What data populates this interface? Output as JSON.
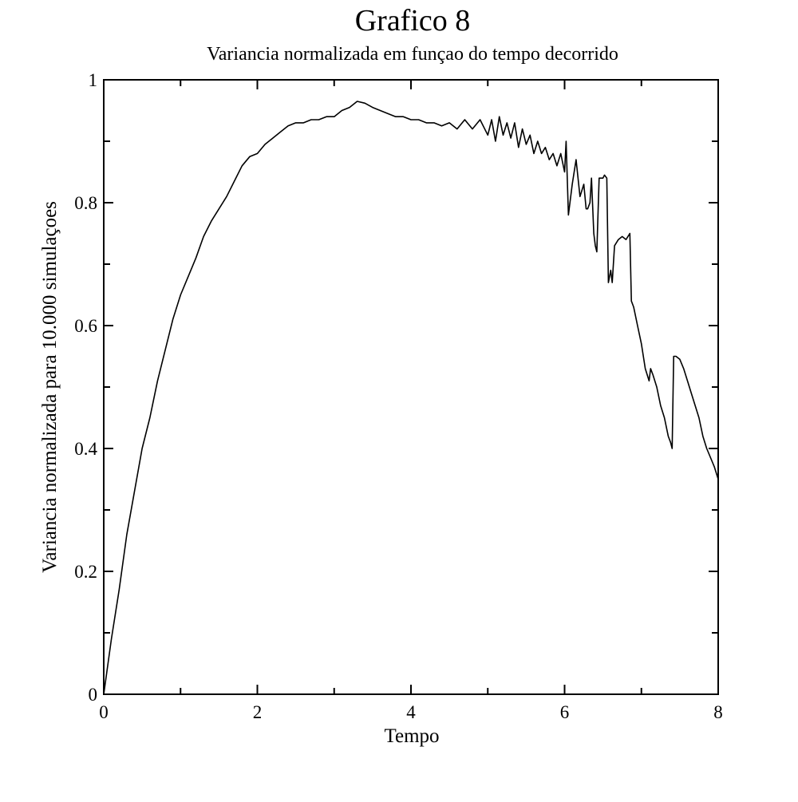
{
  "chart_data": {
    "type": "line",
    "title": "Grafico 8",
    "subtitle": "Variancia normalizada em funçao do tempo decorrido",
    "xlabel": "Tempo",
    "ylabel": "Variancia normalizada para 10.000 simulaçoes",
    "xlim": [
      0,
      8
    ],
    "ylim": [
      0,
      1
    ],
    "xticks": [
      0,
      2,
      4,
      6,
      8
    ],
    "xtick_labels": [
      "0",
      "2",
      "4",
      "6",
      "8"
    ],
    "yticks": [
      0,
      0.2,
      0.4,
      0.6,
      0.8,
      1
    ],
    "ytick_labels": [
      "0",
      "0.2",
      "0.4",
      "0.6",
      "0.8",
      "1"
    ],
    "x_minor_step": 1,
    "y_minor_step": 0.1,
    "grid": false,
    "legend": "none",
    "series": [
      {
        "color": "#000000",
        "x": [
          0,
          0.1,
          0.2,
          0.3,
          0.4,
          0.5,
          0.6,
          0.7,
          0.8,
          0.9,
          1.0,
          1.1,
          1.2,
          1.3,
          1.4,
          1.5,
          1.6,
          1.7,
          1.8,
          1.9,
          2.0,
          2.1,
          2.2,
          2.3,
          2.4,
          2.5,
          2.6,
          2.7,
          2.8,
          2.9,
          3.0,
          3.1,
          3.2,
          3.3,
          3.4,
          3.5,
          3.6,
          3.7,
          3.8,
          3.9,
          4.0,
          4.1,
          4.2,
          4.3,
          4.4,
          4.5,
          4.6,
          4.7,
          4.8,
          4.9,
          5.0,
          5.05,
          5.1,
          5.15,
          5.2,
          5.25,
          5.3,
          5.35,
          5.4,
          5.45,
          5.5,
          5.55,
          5.6,
          5.65,
          5.7,
          5.75,
          5.8,
          5.85,
          5.9,
          5.95,
          6.0,
          6.02,
          6.05,
          6.1,
          6.15,
          6.2,
          6.25,
          6.28,
          6.3,
          6.33,
          6.35,
          6.38,
          6.4,
          6.42,
          6.45,
          6.5,
          6.52,
          6.55,
          6.57,
          6.6,
          6.62,
          6.65,
          6.7,
          6.75,
          6.8,
          6.85,
          6.87,
          6.9,
          6.95,
          7.0,
          7.05,
          7.1,
          7.12,
          7.15,
          7.2,
          7.25,
          7.3,
          7.35,
          7.38,
          7.4,
          7.42,
          7.45,
          7.5,
          7.55,
          7.6,
          7.65,
          7.7,
          7.75,
          7.8,
          7.85,
          7.9,
          7.95,
          8.0
        ],
        "y": [
          0.0,
          0.09,
          0.17,
          0.26,
          0.33,
          0.4,
          0.45,
          0.51,
          0.56,
          0.61,
          0.65,
          0.68,
          0.71,
          0.745,
          0.77,
          0.79,
          0.81,
          0.835,
          0.86,
          0.875,
          0.88,
          0.895,
          0.905,
          0.915,
          0.925,
          0.93,
          0.93,
          0.935,
          0.935,
          0.94,
          0.94,
          0.95,
          0.955,
          0.965,
          0.962,
          0.955,
          0.95,
          0.945,
          0.94,
          0.94,
          0.935,
          0.935,
          0.93,
          0.93,
          0.925,
          0.93,
          0.92,
          0.935,
          0.92,
          0.935,
          0.91,
          0.935,
          0.9,
          0.94,
          0.91,
          0.93,
          0.905,
          0.93,
          0.89,
          0.92,
          0.895,
          0.91,
          0.88,
          0.9,
          0.88,
          0.89,
          0.87,
          0.88,
          0.86,
          0.88,
          0.85,
          0.9,
          0.78,
          0.83,
          0.87,
          0.81,
          0.83,
          0.79,
          0.79,
          0.8,
          0.84,
          0.75,
          0.73,
          0.72,
          0.84,
          0.84,
          0.845,
          0.84,
          0.67,
          0.69,
          0.67,
          0.73,
          0.74,
          0.745,
          0.74,
          0.75,
          0.64,
          0.63,
          0.6,
          0.57,
          0.53,
          0.51,
          0.53,
          0.52,
          0.5,
          0.47,
          0.45,
          0.42,
          0.41,
          0.4,
          0.55,
          0.55,
          0.545,
          0.53,
          0.51,
          0.49,
          0.47,
          0.45,
          0.42,
          0.4,
          0.385,
          0.37,
          0.35
        ]
      }
    ]
  }
}
